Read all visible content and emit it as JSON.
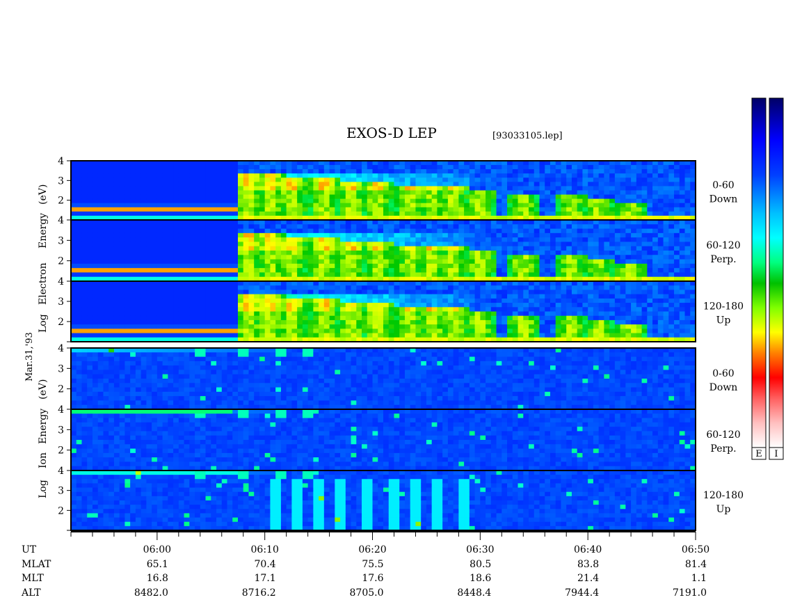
{
  "title": "EXOS-D LEP",
  "file_label": "[93033105.lep]",
  "date_label": "Mar.31,'93",
  "colors": {
    "scale": [
      "#ffffff",
      "#ff8080",
      "#ff0000",
      "#ff7f00",
      "#ffff00",
      "#80ff00",
      "#00c000",
      "#00ffc0",
      "#00ffff",
      "#0080ff",
      "#0000ff",
      "#000080"
    ]
  },
  "chart_data": {
    "type": "heatmap",
    "x_axis": {
      "label": "UT",
      "range": [
        "05:52",
        "06:50"
      ],
      "tick_labels": [
        "06:00",
        "06:10",
        "06:20",
        "06:30",
        "06:40",
        "06:50"
      ]
    },
    "groups": [
      {
        "name": "electron",
        "ylabel": [
          "Log",
          "Electron",
          "Energy",
          "(eV)"
        ],
        "panels": [
          {
            "angle": "0-60",
            "direction": "Down",
            "y_ticks": [
              "2",
              "3",
              "4"
            ],
            "ylim": [
              1,
              4
            ]
          },
          {
            "angle": "60-120",
            "direction": "Perp.",
            "y_ticks": [
              "2",
              "3",
              "4"
            ],
            "ylim": [
              1,
              4
            ]
          },
          {
            "angle": "120-180",
            "direction": "Up",
            "y_ticks": [
              "2",
              "3",
              "4"
            ],
            "ylim": [
              1,
              4
            ]
          }
        ]
      },
      {
        "name": "ion",
        "ylabel": [
          "Log",
          "Ion",
          "Energy",
          "(eV)"
        ],
        "panels": [
          {
            "angle": "0-60",
            "direction": "Down",
            "y_ticks": [
              "2",
              "3",
              "4"
            ],
            "ylim": [
              1,
              4
            ]
          },
          {
            "angle": "60-120",
            "direction": "Perp.",
            "y_ticks": [
              "2",
              "3",
              "4"
            ],
            "ylim": [
              1,
              4
            ]
          },
          {
            "angle": "120-180",
            "direction": "Up",
            "y_ticks": [
              "2",
              "3",
              "4"
            ],
            "ylim": [
              1,
              4
            ]
          }
        ]
      }
    ],
    "ephemeris": {
      "rows": [
        {
          "name": "MLAT",
          "values": [
            "65.1",
            "70.4",
            "75.5",
            "80.5",
            "83.8",
            "81.4"
          ]
        },
        {
          "name": "MLT",
          "values": [
            "16.8",
            "17.1",
            "17.6",
            "18.6",
            "21.4",
            "1.1"
          ]
        },
        {
          "name": "ALT",
          "values": [
            "8482.0",
            "8716.2",
            "8705.0",
            "8448.4",
            "7944.4",
            "7191.0"
          ]
        }
      ]
    },
    "colorbars": [
      {
        "label": "E"
      },
      {
        "label": "I"
      }
    ]
  }
}
